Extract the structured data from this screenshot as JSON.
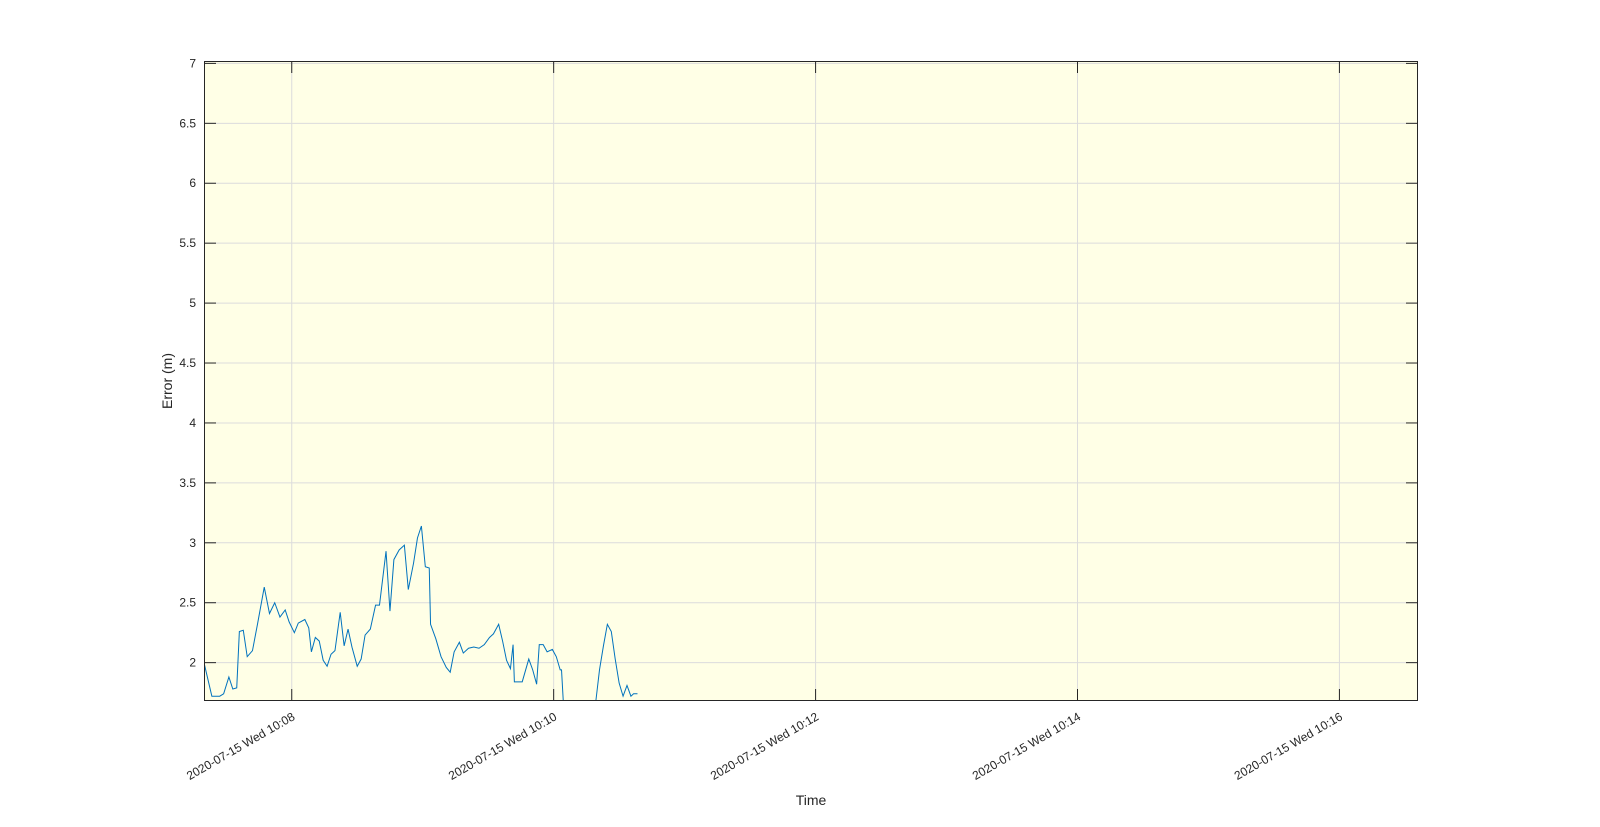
{
  "chart_data": {
    "type": "line",
    "xlabel": "Time",
    "ylabel": "Error (m)",
    "x": [
      7.33,
      7.39,
      7.45,
      7.48,
      7.52,
      7.55,
      7.58,
      7.6,
      7.63,
      7.66,
      7.7,
      7.74,
      7.79,
      7.83,
      7.87,
      7.91,
      7.95,
      7.98,
      8.02,
      8.05,
      8.1,
      8.13,
      8.15,
      8.18,
      8.21,
      8.24,
      8.27,
      8.3,
      8.33,
      8.37,
      8.4,
      8.43,
      8.46,
      8.5,
      8.53,
      8.56,
      8.6,
      8.64,
      8.67,
      8.72,
      8.75,
      8.78,
      8.82,
      8.86,
      8.89,
      8.93,
      8.96,
      8.99,
      9.02,
      9.05,
      9.06,
      9.1,
      9.14,
      9.18,
      9.21,
      9.24,
      9.28,
      9.31,
      9.35,
      9.39,
      9.43,
      9.47,
      9.51,
      9.54,
      9.58,
      9.61,
      9.64,
      9.67,
      9.69,
      9.7,
      9.73,
      9.76,
      9.81,
      9.84,
      9.87,
      9.89,
      9.92,
      9.95,
      9.99,
      10.02,
      10.05,
      10.06,
      10.08,
      10.2,
      10.32,
      10.35,
      10.38,
      10.41,
      10.44,
      10.47,
      10.5,
      10.53,
      10.56,
      10.59,
      10.61,
      10.64
    ],
    "series": [
      {
        "color": "#0072bd",
        "values": [
          2.0,
          1.72,
          1.72,
          1.74,
          1.88,
          1.78,
          1.79,
          2.26,
          2.27,
          2.05,
          2.1,
          2.33,
          2.63,
          2.41,
          2.5,
          2.38,
          2.44,
          2.34,
          2.25,
          2.33,
          2.36,
          2.29,
          2.09,
          2.21,
          2.18,
          2.02,
          1.97,
          2.07,
          2.1,
          2.42,
          2.14,
          2.28,
          2.13,
          1.97,
          2.03,
          2.23,
          2.28,
          2.48,
          2.48,
          2.93,
          2.43,
          2.86,
          2.94,
          2.98,
          2.61,
          2.83,
          3.04,
          3.14,
          2.8,
          2.79,
          2.32,
          2.2,
          2.05,
          1.96,
          1.92,
          2.09,
          2.17,
          2.08,
          2.12,
          2.13,
          2.12,
          2.15,
          2.21,
          2.24,
          2.32,
          2.18,
          2.02,
          1.95,
          2.15,
          1.84,
          1.84,
          1.84,
          2.03,
          1.94,
          1.82,
          2.15,
          2.15,
          2.09,
          2.11,
          2.05,
          1.94,
          1.94,
          1.55,
          1.4,
          1.66,
          1.94,
          2.14,
          2.32,
          2.26,
          2.03,
          1.83,
          1.72,
          1.81,
          1.72,
          1.74,
          1.74
        ]
      }
    ],
    "xlim": [
      7.33,
      16.6
    ],
    "xticks": [
      {
        "value": 8,
        "label": "2020-07-15 Wed 10:08"
      },
      {
        "value": 10,
        "label": "2020-07-15 Wed 10:10"
      },
      {
        "value": 12,
        "label": "2020-07-15 Wed 10:12"
      },
      {
        "value": 14,
        "label": "2020-07-15 Wed 10:14"
      },
      {
        "value": 16,
        "label": "2020-07-15 Wed 10:16"
      }
    ],
    "ylim": [
      1.68,
      7.02
    ],
    "yticks": [
      2,
      2.5,
      3,
      3.5,
      4,
      4.5,
      5,
      5.5,
      6,
      6.5,
      7
    ],
    "grid": true,
    "background": "#ffffe6"
  }
}
